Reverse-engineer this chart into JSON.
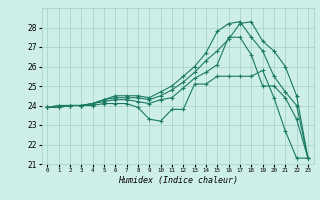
{
  "title": "",
  "xlabel": "Humidex (Indice chaleur)",
  "xlim": [
    -0.5,
    23.5
  ],
  "ylim": [
    21,
    29
  ],
  "yticks": [
    21,
    22,
    23,
    24,
    25,
    26,
    27,
    28
  ],
  "xticks": [
    0,
    1,
    2,
    3,
    4,
    5,
    6,
    7,
    8,
    9,
    10,
    11,
    12,
    13,
    14,
    15,
    16,
    17,
    18,
    19,
    20,
    21,
    22,
    23
  ],
  "bg_color": "#ceeee8",
  "grid_color": "#aad4ce",
  "line_color": "#1a7a62",
  "lines": [
    {
      "x": [
        0,
        1,
        2,
        3,
        4,
        5,
        6,
        7,
        8,
        9,
        10,
        11,
        12,
        13,
        14,
        15,
        16,
        17,
        18,
        19,
        20,
        21,
        22,
        23
      ],
      "y": [
        23.9,
        23.9,
        24.0,
        24.0,
        24.0,
        24.1,
        24.1,
        24.1,
        23.9,
        23.3,
        23.2,
        23.8,
        23.8,
        25.1,
        25.1,
        25.5,
        25.5,
        25.5,
        25.5,
        25.8,
        24.4,
        22.7,
        21.3,
        21.3
      ]
    },
    {
      "x": [
        0,
        1,
        2,
        3,
        4,
        5,
        6,
        7,
        8,
        9,
        10,
        11,
        12,
        13,
        14,
        15,
        16,
        17,
        18,
        19,
        20,
        21,
        22,
        23
      ],
      "y": [
        23.9,
        23.9,
        24.0,
        24.0,
        24.1,
        24.2,
        24.3,
        24.3,
        24.2,
        24.1,
        24.3,
        24.4,
        24.9,
        25.4,
        25.7,
        26.1,
        27.5,
        27.5,
        26.6,
        25.0,
        25.0,
        24.4,
        23.3,
        21.3
      ]
    },
    {
      "x": [
        0,
        1,
        2,
        3,
        4,
        5,
        6,
        7,
        8,
        9,
        10,
        11,
        12,
        13,
        14,
        15,
        16,
        17,
        18,
        19,
        20,
        21,
        22,
        23
      ],
      "y": [
        23.9,
        24.0,
        24.0,
        24.0,
        24.1,
        24.3,
        24.4,
        24.4,
        24.4,
        24.3,
        24.5,
        24.8,
        25.2,
        25.7,
        26.3,
        26.8,
        27.4,
        28.2,
        28.3,
        27.3,
        26.8,
        26.0,
        24.5,
        21.3
      ]
    },
    {
      "x": [
        0,
        1,
        2,
        3,
        4,
        5,
        6,
        7,
        8,
        9,
        10,
        11,
        12,
        13,
        14,
        15,
        16,
        17,
        18,
        19,
        20,
        21,
        22,
        23
      ],
      "y": [
        23.9,
        24.0,
        24.0,
        24.0,
        24.1,
        24.3,
        24.5,
        24.5,
        24.5,
        24.4,
        24.7,
        25.0,
        25.5,
        26.0,
        26.7,
        27.8,
        28.2,
        28.3,
        27.5,
        26.8,
        25.5,
        24.7,
        24.0,
        21.3
      ]
    }
  ]
}
